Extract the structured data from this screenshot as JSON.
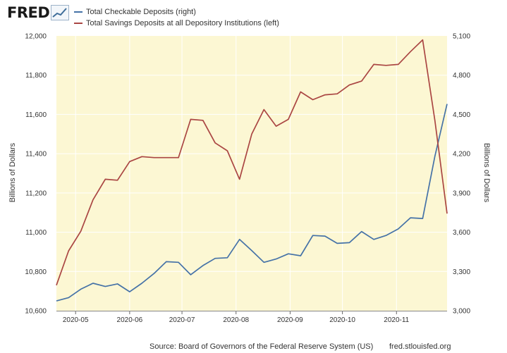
{
  "logo": {
    "text": "FRED"
  },
  "source": "Source: Board of Governors of the Federal Reserve System (US)",
  "url": "fred.stlouisfed.org",
  "chart_data": {
    "type": "line",
    "title": "",
    "ylabel_left": "Billions of Dollars",
    "ylabel_right": "Billions of Dollars",
    "ylim_left": [
      10600,
      12000
    ],
    "ylim_right": [
      3000,
      5100
    ],
    "yticks_left": [
      "12,000",
      "11,800",
      "11,600",
      "11,400",
      "11,200",
      "11,000",
      "10,800",
      "10,600"
    ],
    "yticks_right": [
      "5,100",
      "4,800",
      "4,500",
      "4,200",
      "3,900",
      "3,600",
      "3,300",
      "3,000"
    ],
    "xticks": [
      "2020-05",
      "2020-06",
      "2020-07",
      "2020-08",
      "2020-09",
      "2020-10",
      "2020-11"
    ],
    "grid": true,
    "legend_position": "top-left",
    "background": "#fcf7d3",
    "series": [
      {
        "name": "Total Checkable Deposits (right)",
        "axis": "right",
        "color": "#4572a7",
        "x": [
          "2020-04-20",
          "2020-04-27",
          "2020-05-04",
          "2020-05-11",
          "2020-05-18",
          "2020-05-25",
          "2020-06-01",
          "2020-06-08",
          "2020-06-15",
          "2020-06-22",
          "2020-06-29",
          "2020-07-06",
          "2020-07-13",
          "2020-07-20",
          "2020-07-27",
          "2020-08-03",
          "2020-08-10",
          "2020-08-17",
          "2020-08-24",
          "2020-08-31",
          "2020-09-07",
          "2020-09-14",
          "2020-09-21",
          "2020-09-28",
          "2020-10-05",
          "2020-10-12",
          "2020-10-19",
          "2020-10-26",
          "2020-11-02",
          "2020-11-09",
          "2020-11-16",
          "2020-11-23",
          "2020-11-30"
        ],
        "values": [
          3075,
          3100,
          3165,
          3210,
          3185,
          3205,
          3145,
          3210,
          3285,
          3375,
          3370,
          3275,
          3345,
          3400,
          3405,
          3545,
          3460,
          3370,
          3395,
          3435,
          3420,
          3575,
          3570,
          3515,
          3520,
          3605,
          3545,
          3575,
          3625,
          3710,
          3705,
          4180,
          4580
        ]
      },
      {
        "name": "Total Savings Deposits at all Depository Institutions (left)",
        "axis": "left",
        "color": "#aa4643",
        "x": [
          "2020-04-20",
          "2020-04-27",
          "2020-05-04",
          "2020-05-11",
          "2020-05-18",
          "2020-05-25",
          "2020-06-01",
          "2020-06-08",
          "2020-06-15",
          "2020-06-22",
          "2020-06-29",
          "2020-07-06",
          "2020-07-13",
          "2020-07-20",
          "2020-07-27",
          "2020-08-03",
          "2020-08-10",
          "2020-08-17",
          "2020-08-24",
          "2020-08-31",
          "2020-09-07",
          "2020-09-14",
          "2020-09-21",
          "2020-09-28",
          "2020-10-05",
          "2020-10-12",
          "2020-10-19",
          "2020-10-26",
          "2020-11-02",
          "2020-11-09",
          "2020-11-16",
          "2020-11-23",
          "2020-11-30"
        ],
        "values": [
          10730,
          10905,
          11005,
          11165,
          11270,
          11265,
          11360,
          11385,
          11380,
          11380,
          11380,
          11575,
          11570,
          11455,
          11415,
          11270,
          11500,
          11625,
          11540,
          11575,
          11715,
          11675,
          11700,
          11705,
          11750,
          11770,
          11855,
          11850,
          11855,
          11920,
          11980,
          11570,
          11095
        ]
      }
    ]
  }
}
